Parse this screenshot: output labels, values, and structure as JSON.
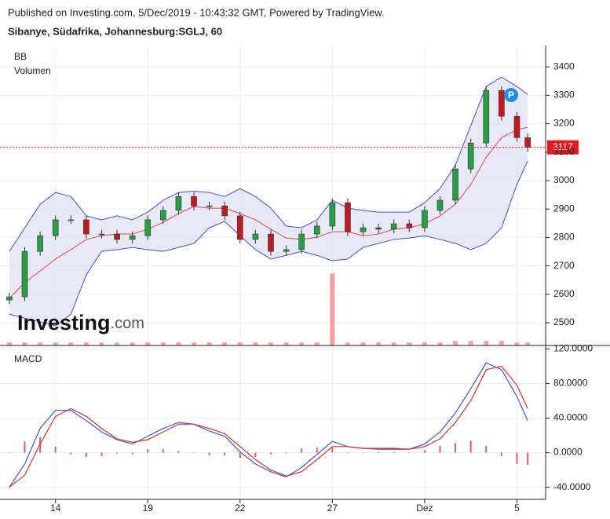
{
  "header": {
    "published": "Published on Investing.com, 5/Dec/2019 - 10:43:32 GMT, Powered by TradingView.",
    "symbol": "Sibanye, Südafrika, Johannesburg:SGLJ, 60"
  },
  "logo": {
    "brand": "Investing",
    "suffix": ".com"
  },
  "chart_data": [
    {
      "type": "candlestick",
      "legend": [
        "BB",
        "Volumen"
      ],
      "x": [
        -1.5,
        -1,
        -0.5,
        0,
        0.5,
        1,
        1.5,
        2,
        2.5,
        3,
        3.5,
        4,
        4.5,
        5,
        5.5,
        6,
        6.5,
        7,
        7.5,
        8,
        8.5,
        9,
        9.5,
        10,
        10.5,
        11,
        11.5,
        12,
        12.5,
        13,
        13.5,
        14,
        14.5,
        15,
        15.35
      ],
      "open": [
        2580,
        2591,
        2751,
        2806,
        2862,
        2862,
        2812,
        2812,
        2793,
        2806,
        2862,
        2895,
        2944,
        2911,
        2911,
        2876,
        2793,
        2812,
        2751,
        2757,
        2812,
        2840,
        2922,
        2820,
        2834,
        2829,
        2848,
        2834,
        2895,
        2931,
        3041,
        3132,
        3317,
        3226,
        3151
      ],
      "high": [
        2606,
        2766,
        2821,
        2877,
        2877,
        2877,
        2827,
        2827,
        2821,
        2877,
        2910,
        2959,
        2959,
        2926,
        2926,
        2891,
        2827,
        2827,
        2772,
        2827,
        2855,
        2937,
        2937,
        2849,
        2849,
        2863,
        2863,
        2910,
        2946,
        3056,
        3147,
        3332,
        3332,
        3241,
        3166
      ],
      "low": [
        2565,
        2576,
        2736,
        2791,
        2847,
        2797,
        2797,
        2778,
        2778,
        2791,
        2847,
        2880,
        2896,
        2896,
        2861,
        2778,
        2778,
        2736,
        2736,
        2742,
        2797,
        2825,
        2805,
        2805,
        2814,
        2814,
        2819,
        2819,
        2880,
        2916,
        3026,
        3117,
        3211,
        3136,
        3102
      ],
      "close": [
        2591,
        2751,
        2806,
        2862,
        2862,
        2812,
        2812,
        2793,
        2806,
        2862,
        2895,
        2944,
        2911,
        2911,
        2876,
        2793,
        2812,
        2751,
        2757,
        2812,
        2840,
        2922,
        2820,
        2834,
        2829,
        2848,
        2834,
        2895,
        2931,
        3041,
        3132,
        3317,
        3226,
        3151,
        3117
      ],
      "up_color": "#26a043",
      "down_color": "#c0191e",
      "bands": {
        "color": "#4a4ad8",
        "fill": "#e2e2f4",
        "middle_color": "#e04848",
        "upper": [
          2751,
          2834,
          2917,
          2958,
          2944,
          2876,
          2862,
          2876,
          2862,
          2889,
          2931,
          2958,
          2963,
          2958,
          2944,
          2972,
          2944,
          2903,
          2840,
          2834,
          2862,
          2931,
          2903,
          2895,
          2889,
          2889,
          2889,
          2922,
          2972,
          3055,
          3193,
          3331,
          3364,
          3331,
          3303
        ],
        "middle": [
          2586,
          2641,
          2682,
          2724,
          2757,
          2793,
          2806,
          2812,
          2812,
          2829,
          2853,
          2884,
          2909,
          2903,
          2903,
          2884,
          2862,
          2829,
          2798,
          2793,
          2801,
          2820,
          2820,
          2806,
          2812,
          2829,
          2834,
          2848,
          2876,
          2917,
          2986,
          3082,
          3151,
          3179,
          3187
        ],
        "lower": [
          2530,
          2516,
          2503,
          2489,
          2530,
          2668,
          2751,
          2757,
          2765,
          2757,
          2751,
          2765,
          2779,
          2834,
          2856,
          2806,
          2757,
          2724,
          2737,
          2751,
          2737,
          2718,
          2724,
          2765,
          2779,
          2793,
          2798,
          2806,
          2793,
          2779,
          2757,
          2779,
          2834,
          2986,
          3069
        ]
      },
      "volume": {
        "values": [
          1,
          1,
          1,
          1,
          1,
          1,
          1,
          1,
          1,
          1,
          1,
          1,
          1,
          1,
          1,
          1,
          1,
          1,
          1,
          1,
          1,
          24,
          1,
          1,
          1,
          1,
          1,
          1,
          1,
          1.5,
          1.5,
          1.5,
          1.5,
          1,
          1
        ],
        "lim": [
          0,
          100
        ],
        "color": "#f4a0a0"
      },
      "last_price": 3117,
      "last_price_color": "#e8191e",
      "xlim": [
        -1.6,
        15.55
      ],
      "ylim": [
        2420,
        3475
      ],
      "yticks": [
        2500,
        2600,
        2700,
        2800,
        2900,
        3000,
        3100,
        3200,
        3300,
        3400
      ],
      "grid": true
    },
    {
      "type": "macd",
      "title": "MACD",
      "x": [
        -1.5,
        -1,
        -0.5,
        0,
        0.5,
        1,
        1.5,
        2,
        2.5,
        3,
        3.5,
        4,
        4.5,
        5,
        5.5,
        6,
        6.5,
        7,
        7.5,
        8,
        8.5,
        9,
        9.5,
        10,
        10.5,
        11,
        11.5,
        12,
        12.5,
        13,
        13.5,
        14,
        14.5,
        15,
        15.35
      ],
      "series": [
        {
          "color": "#3a58e0",
          "values": [
            -40,
            -13,
            28,
            49,
            49,
            37,
            24,
            15,
            10,
            19,
            28,
            35,
            33,
            25,
            19,
            1,
            -13,
            -22,
            -28,
            -17,
            -2,
            13,
            7,
            5,
            5,
            5,
            4,
            10,
            24,
            46,
            74,
            104,
            96,
            65,
            37
          ]
        },
        {
          "color": "#e02c2c",
          "values": [
            -40,
            -26,
            10,
            42,
            51,
            42,
            28,
            16,
            12,
            15,
            24,
            33,
            33,
            28,
            22,
            7,
            -8,
            -20,
            -27,
            -22,
            -8,
            7,
            7,
            5,
            4,
            4,
            4,
            7,
            16,
            35,
            60,
            96,
            100,
            78,
            51
          ]
        }
      ],
      "histogram": {
        "color": "#e85a5a",
        "values": [
          0,
          13,
          18,
          7,
          -2,
          -5,
          -4,
          -1,
          -2,
          4,
          4,
          2,
          0,
          -3,
          -3,
          -6,
          -5,
          -2,
          -1,
          5,
          6,
          6,
          0,
          0,
          1,
          1,
          0,
          3,
          8,
          11,
          14,
          8,
          -4,
          -13,
          -14
        ]
      },
      "xlim": [
        -1.6,
        15.55
      ],
      "ylim": [
        -54,
        124
      ],
      "xticks": [
        {
          "value": 0,
          "label": "14"
        },
        {
          "value": 3,
          "label": "19"
        },
        {
          "value": 6,
          "label": "22"
        },
        {
          "value": 9,
          "label": "27"
        },
        {
          "value": 12,
          "label": "Dez"
        },
        {
          "value": 15,
          "label": "5"
        }
      ],
      "yticks": [
        {
          "value": 120,
          "label": "120.0000"
        },
        {
          "value": 80,
          "label": "80.0000"
        },
        {
          "value": 40,
          "label": "40.0000"
        },
        {
          "value": 0,
          "label": "0.0000"
        },
        {
          "value": -40,
          "label": "-40.0000"
        }
      ],
      "grid": true
    }
  ]
}
